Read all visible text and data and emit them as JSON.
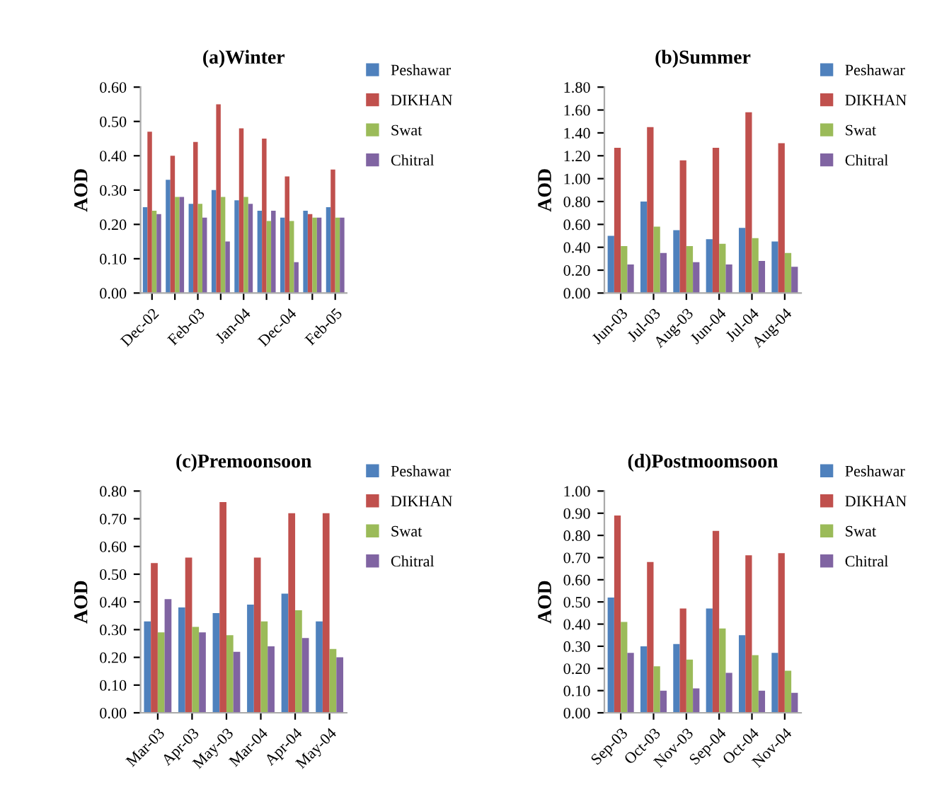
{
  "chart_data": [
    {
      "type": "bar",
      "title": "(a)Winter",
      "ylabel": "AOD",
      "categories": [
        "Dec-02",
        null,
        "Feb-03",
        null,
        "Jan-04",
        null,
        "Dec-04",
        null,
        "Feb-05"
      ],
      "series": [
        {
          "name": "Peshawar",
          "color": "#4f81bd",
          "values": [
            0.25,
            0.33,
            0.26,
            0.3,
            0.27,
            0.24,
            0.22,
            0.24,
            0.25
          ]
        },
        {
          "name": "DIKHAN",
          "color": "#c0504d",
          "values": [
            0.47,
            0.4,
            0.44,
            0.55,
            0.48,
            0.45,
            0.34,
            0.23,
            0.36
          ]
        },
        {
          "name": "Swat",
          "color": "#9bbb59",
          "values": [
            0.24,
            0.28,
            0.26,
            0.28,
            0.28,
            0.21,
            0.21,
            0.22,
            0.22
          ]
        },
        {
          "name": "Chitral",
          "color": "#8064a2",
          "values": [
            0.23,
            0.28,
            0.22,
            0.15,
            0.26,
            0.24,
            0.09,
            0.22,
            0.22
          ]
        }
      ],
      "ylim": [
        0,
        0.6
      ],
      "yticks": [
        {
          "value": 0,
          "label": "0.00"
        },
        {
          "value": 0.1,
          "label": "0.10"
        },
        {
          "value": 0.2,
          "label": "0.20"
        },
        {
          "value": 0.3,
          "label": "0.30"
        },
        {
          "value": 0.4,
          "label": "0.40"
        },
        {
          "value": 0.5,
          "label": "0.50"
        },
        {
          "value": 0.6,
          "label": "0.60"
        }
      ],
      "legend": "right",
      "grid": false
    },
    {
      "type": "bar",
      "title": "(b)Summer",
      "ylabel": "AOD",
      "categories": [
        "Jun-03",
        "Jul-03",
        "Aug-03",
        "Jun-04",
        "Jul-04",
        "Aug-04"
      ],
      "series": [
        {
          "name": "Peshawar",
          "color": "#4f81bd",
          "values": [
            0.5,
            0.8,
            0.55,
            0.47,
            0.57,
            0.45
          ]
        },
        {
          "name": "DIKHAN",
          "color": "#c0504d",
          "values": [
            1.27,
            1.45,
            1.16,
            1.27,
            1.58,
            1.31
          ]
        },
        {
          "name": "Swat",
          "color": "#9bbb59",
          "values": [
            0.41,
            0.58,
            0.41,
            0.43,
            0.48,
            0.35
          ]
        },
        {
          "name": "Chitral",
          "color": "#8064a2",
          "values": [
            0.25,
            0.35,
            0.27,
            0.25,
            0.28,
            0.23
          ]
        }
      ],
      "ylim": [
        0,
        1.8
      ],
      "yticks": [
        {
          "value": 0,
          "label": "0.00"
        },
        {
          "value": 0.2,
          "label": "0.20"
        },
        {
          "value": 0.4,
          "label": "0.40"
        },
        {
          "value": 0.6,
          "label": "0.60"
        },
        {
          "value": 0.8,
          "label": "0.80"
        },
        {
          "value": 1.0,
          "label": "1.00"
        },
        {
          "value": 1.2,
          "label": "1.20"
        },
        {
          "value": 1.4,
          "label": "1.40"
        },
        {
          "value": 1.6,
          "label": "1.60"
        },
        {
          "value": 1.8,
          "label": "1.80"
        }
      ],
      "legend": "right",
      "grid": false
    },
    {
      "type": "bar",
      "title": "(c)Premoonsoon",
      "ylabel": "AOD",
      "categories": [
        "Mar-03",
        "Apr-03",
        "May-03",
        "Mar-04",
        "Apr-04",
        "May-04"
      ],
      "series": [
        {
          "name": "Peshawar",
          "color": "#4f81bd",
          "values": [
            0.33,
            0.38,
            0.36,
            0.39,
            0.43,
            0.33
          ]
        },
        {
          "name": "DIKHAN",
          "color": "#c0504d",
          "values": [
            0.54,
            0.56,
            0.76,
            0.56,
            0.72,
            0.72
          ]
        },
        {
          "name": "Swat",
          "color": "#9bbb59",
          "values": [
            0.29,
            0.31,
            0.28,
            0.33,
            0.37,
            0.23
          ]
        },
        {
          "name": "Chitral",
          "color": "#8064a2",
          "values": [
            0.41,
            0.29,
            0.22,
            0.24,
            0.27,
            0.2
          ]
        }
      ],
      "ylim": [
        0,
        0.8
      ],
      "yticks": [
        {
          "value": 0,
          "label": "0.00"
        },
        {
          "value": 0.1,
          "label": "0.10"
        },
        {
          "value": 0.2,
          "label": "0.20"
        },
        {
          "value": 0.3,
          "label": "0.30"
        },
        {
          "value": 0.4,
          "label": "0.40"
        },
        {
          "value": 0.5,
          "label": "0.50"
        },
        {
          "value": 0.6,
          "label": "0.60"
        },
        {
          "value": 0.7,
          "label": "0.70"
        },
        {
          "value": 0.8,
          "label": "0.80"
        }
      ],
      "legend": "right",
      "grid": false
    },
    {
      "type": "bar",
      "title": "(d)Postmoomsoon",
      "ylabel": "AOD",
      "categories": [
        "Sep-03",
        "Oct-03",
        "Nov-03",
        "Sep-04",
        "Oct-04",
        "Nov-04"
      ],
      "series": [
        {
          "name": "Peshawar",
          "color": "#4f81bd",
          "values": [
            0.52,
            0.3,
            0.31,
            0.47,
            0.35,
            0.27
          ]
        },
        {
          "name": "DIKHAN",
          "color": "#c0504d",
          "values": [
            0.89,
            0.68,
            0.47,
            0.82,
            0.71,
            0.72
          ]
        },
        {
          "name": "Swat",
          "color": "#9bbb59",
          "values": [
            0.41,
            0.21,
            0.24,
            0.38,
            0.26,
            0.19
          ]
        },
        {
          "name": "Chitral",
          "color": "#8064a2",
          "values": [
            0.27,
            0.1,
            0.11,
            0.18,
            0.1,
            0.09
          ]
        }
      ],
      "ylim": [
        0,
        1.0
      ],
      "yticks": [
        {
          "value": 0,
          "label": "0.00"
        },
        {
          "value": 0.1,
          "label": "0.10"
        },
        {
          "value": 0.2,
          "label": "0.20"
        },
        {
          "value": 0.3,
          "label": "0.30"
        },
        {
          "value": 0.4,
          "label": "0.40"
        },
        {
          "value": 0.5,
          "label": "0.50"
        },
        {
          "value": 0.6,
          "label": "0.60"
        },
        {
          "value": 0.7,
          "label": "0.70"
        },
        {
          "value": 0.8,
          "label": "0.80"
        },
        {
          "value": 0.9,
          "label": "0.90"
        },
        {
          "value": 1.0,
          "label": "1.00"
        }
      ],
      "legend": "right",
      "grid": false
    }
  ]
}
